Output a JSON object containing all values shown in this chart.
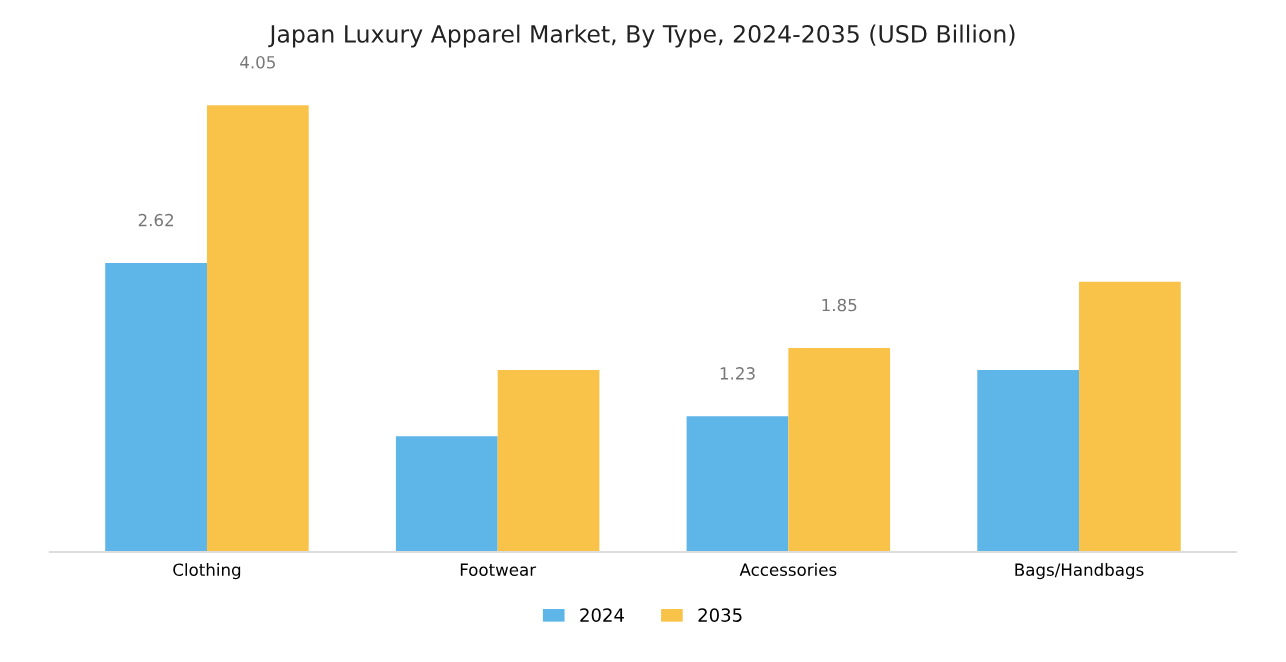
{
  "chart_data": {
    "type": "bar",
    "title": "Japan Luxury Apparel Market, By Type, 2024-2035 (USD Billion)",
    "categories": [
      "Clothing",
      "Footwear",
      "Accessories",
      "Bags/Handbags"
    ],
    "series": [
      {
        "name": "2024",
        "color": "#5db5e8",
        "values": [
          2.62,
          1.05,
          1.23,
          1.65
        ],
        "value_labels": [
          "2.62",
          null,
          "1.23",
          null
        ]
      },
      {
        "name": "2035",
        "color": "#f9c34a",
        "values": [
          4.05,
          1.65,
          1.85,
          2.45
        ],
        "value_labels": [
          "4.05",
          null,
          "1.85",
          null
        ]
      }
    ],
    "relative": false,
    "legend": "bottom"
  }
}
